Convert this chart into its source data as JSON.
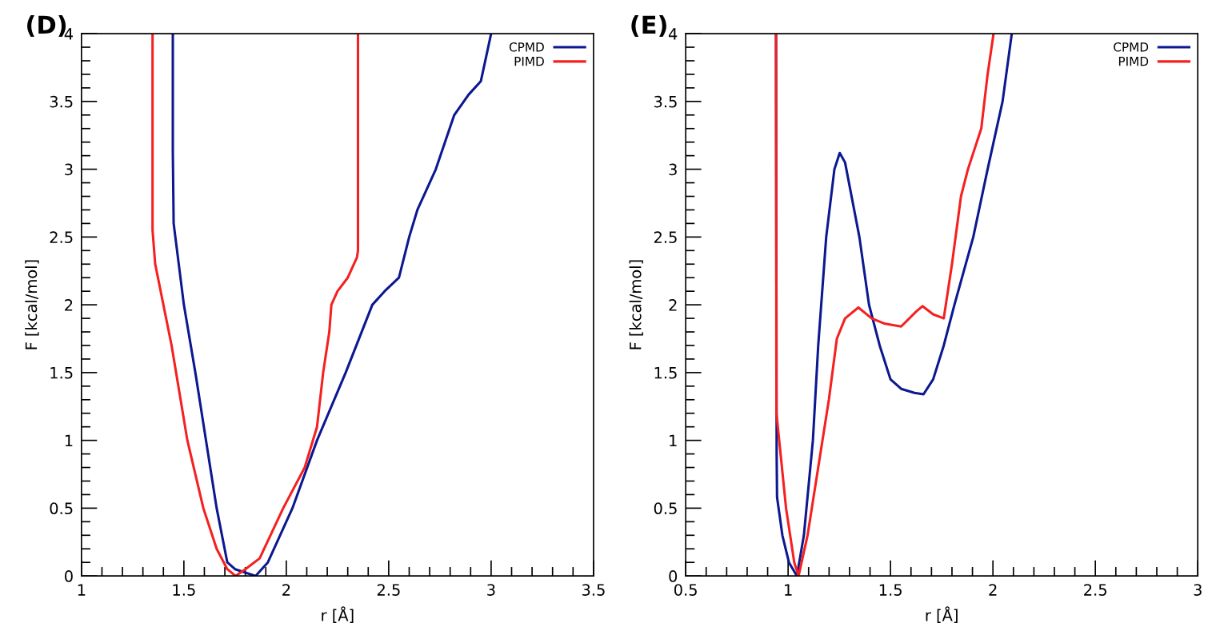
{
  "chart_data": [
    {
      "type": "line",
      "title": "(D)",
      "xlabel": "r [Å]",
      "ylabel": "F [kcal/mol]",
      "xlim": [
        1,
        3.5
      ],
      "ylim": [
        0,
        4
      ],
      "xticks": [
        1,
        1.5,
        2,
        2.5,
        3,
        3.5
      ],
      "yticks": [
        0,
        0.5,
        1,
        1.5,
        2,
        2.5,
        3,
        3.5,
        4
      ],
      "grid": false,
      "legend": "top right",
      "marker": "none",
      "line_style": "solid",
      "series": [
        {
          "name": "CPMD",
          "color": "#0c1890",
          "x": [
            1.446,
            1.446,
            1.45,
            1.5,
            1.556,
            1.608,
            1.66,
            1.712,
            1.75,
            1.85,
            1.91,
            2.03,
            2.15,
            2.29,
            2.42,
            2.48,
            2.55,
            2.6,
            2.64,
            2.73,
            2.82,
            2.89,
            2.95,
            3.0
          ],
          "values": [
            4,
            3.13,
            2.6,
            2.0,
            1.5,
            1.0,
            0.5,
            0.1,
            0.05,
            0,
            0.1,
            0.5,
            1.0,
            1.5,
            2.0,
            2.1,
            2.2,
            2.5,
            2.7,
            3.0,
            3.4,
            3.55,
            3.65,
            4
          ]
        },
        {
          "name": "PIMD",
          "color": "#f52020",
          "x": [
            1.347,
            1.347,
            1.36,
            1.4,
            1.44,
            1.517,
            1.595,
            1.66,
            1.712,
            1.752,
            1.8,
            1.87,
            1.985,
            2.09,
            2.15,
            2.18,
            2.21,
            2.22,
            2.25,
            2.3,
            2.345,
            2.35,
            2.35
          ],
          "values": [
            4,
            2.55,
            2.3,
            2.0,
            1.7,
            1.0,
            0.5,
            0.2,
            0.05,
            0,
            0.05,
            0.13,
            0.5,
            0.8,
            1.1,
            1.5,
            1.8,
            2.0,
            2.1,
            2.2,
            2.35,
            2.4,
            4
          ]
        }
      ]
    },
    {
      "type": "line",
      "title": "(E)",
      "xlabel": "r [Å]",
      "ylabel": "F [kcal/mol]",
      "xlim": [
        0.5,
        3
      ],
      "ylim": [
        0,
        4
      ],
      "xticks": [
        0.5,
        1,
        1.5,
        2,
        2.5,
        3
      ],
      "yticks": [
        0,
        0.5,
        1,
        1.5,
        2,
        2.5,
        3,
        3.5,
        4
      ],
      "grid": false,
      "legend": "top right",
      "marker": "none",
      "line_style": "solid",
      "series": [
        {
          "name": "CPMD",
          "color": "#0c1890",
          "x": [
            0.941,
            0.944,
            0.946,
            0.972,
            1.004,
            1.043,
            1.077,
            1.121,
            1.147,
            1.186,
            1.226,
            1.252,
            1.278,
            1.348,
            1.395,
            1.447,
            1.5,
            1.552,
            1.617,
            1.661,
            1.708,
            1.76,
            1.812,
            1.904,
            1.974,
            2.047,
            2.092
          ],
          "values": [
            4,
            0.9,
            0.58,
            0.3,
            0.1,
            0,
            0.3,
            1.0,
            1.7,
            2.5,
            3.0,
            3.12,
            3.05,
            2.5,
            2.0,
            1.7,
            1.45,
            1.38,
            1.35,
            1.34,
            1.45,
            1.7,
            2.0,
            2.5,
            3.0,
            3.5,
            4
          ]
        },
        {
          "name": "PIMD",
          "color": "#f52020",
          "x": [
            0.941,
            0.943,
            0.99,
            1.03,
            1.051,
            1.095,
            1.147,
            1.199,
            1.238,
            1.278,
            1.343,
            1.408,
            1.473,
            1.552,
            1.625,
            1.656,
            1.708,
            1.76,
            1.8,
            1.844,
            1.878,
            1.943,
            1.974,
            2.003
          ],
          "values": [
            4,
            1.2,
            0.5,
            0.1,
            0,
            0.3,
            0.8,
            1.3,
            1.75,
            1.9,
            1.98,
            1.9,
            1.86,
            1.84,
            1.95,
            1.99,
            1.93,
            1.9,
            2.3,
            2.8,
            3.0,
            3.3,
            3.7,
            4.0
          ]
        }
      ]
    }
  ]
}
